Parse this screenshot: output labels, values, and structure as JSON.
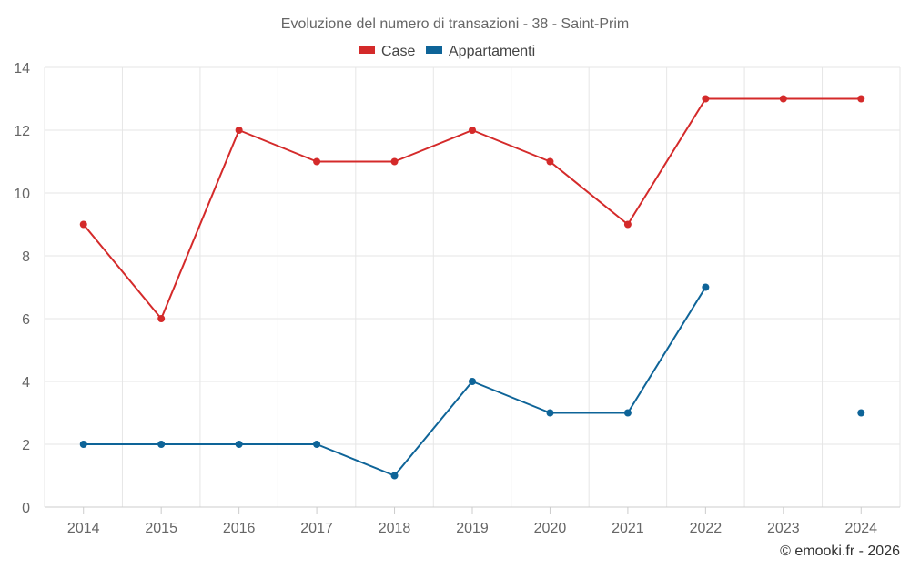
{
  "chart_data": {
    "type": "line",
    "title": "Evoluzione del numero di transazioni - 38 - Saint-Prim",
    "categories": [
      "2014",
      "2015",
      "2016",
      "2017",
      "2018",
      "2019",
      "2020",
      "2021",
      "2022",
      "2023",
      "2024"
    ],
    "series": [
      {
        "name": "Case",
        "color": "#d42a2a",
        "values": [
          9,
          6,
          12,
          11,
          11,
          12,
          11,
          9,
          13,
          13,
          13
        ]
      },
      {
        "name": "Appartamenti",
        "color": "#0e6498",
        "values": [
          2,
          2,
          2,
          2,
          1,
          4,
          3,
          3,
          7,
          null,
          3
        ]
      }
    ],
    "ylim": [
      0,
      14
    ],
    "yticks": [
      0,
      2,
      4,
      6,
      8,
      10,
      12,
      14
    ],
    "grid": true,
    "legend": "top-center"
  },
  "credit": "© emooki.fr - 2026"
}
